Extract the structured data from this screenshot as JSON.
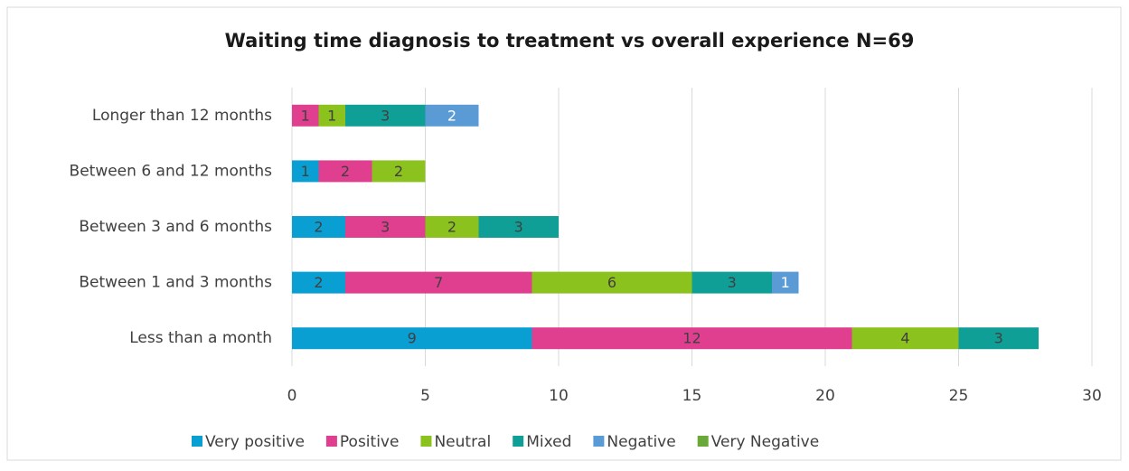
{
  "chart_data": {
    "type": "stacked-bar-horizontal",
    "title": "Waiting time diagnosis to treatment vs overall experience N=69",
    "categories": [
      "Longer than 12 months",
      "Between 6 and 12 months",
      "Between 3 and 6 months",
      "Between 1 and 3 months",
      "Less than a month"
    ],
    "series": [
      {
        "name": "Very positive",
        "color": "#0a9fd3",
        "values": [
          null,
          1,
          2,
          2,
          9
        ]
      },
      {
        "name": "Positive",
        "color": "#df3f8e",
        "values": [
          1,
          2,
          3,
          7,
          12
        ]
      },
      {
        "name": "Neutral",
        "color": "#8cc21e",
        "values": [
          1,
          2,
          2,
          6,
          4
        ]
      },
      {
        "name": "Mixed",
        "color": "#109f96",
        "values": [
          3,
          null,
          3,
          3,
          3
        ]
      },
      {
        "name": "Negative",
        "color": "#5b9bd5",
        "values": [
          2,
          null,
          null,
          1,
          null
        ]
      },
      {
        "name": "Very Negative",
        "color": "#6aa83a",
        "values": [
          null,
          null,
          null,
          null,
          null
        ]
      }
    ],
    "xlim": [
      0,
      30
    ],
    "xticks": [
      0,
      5,
      10,
      15,
      20,
      25,
      30
    ],
    "grid": true,
    "legend": "bottom"
  }
}
